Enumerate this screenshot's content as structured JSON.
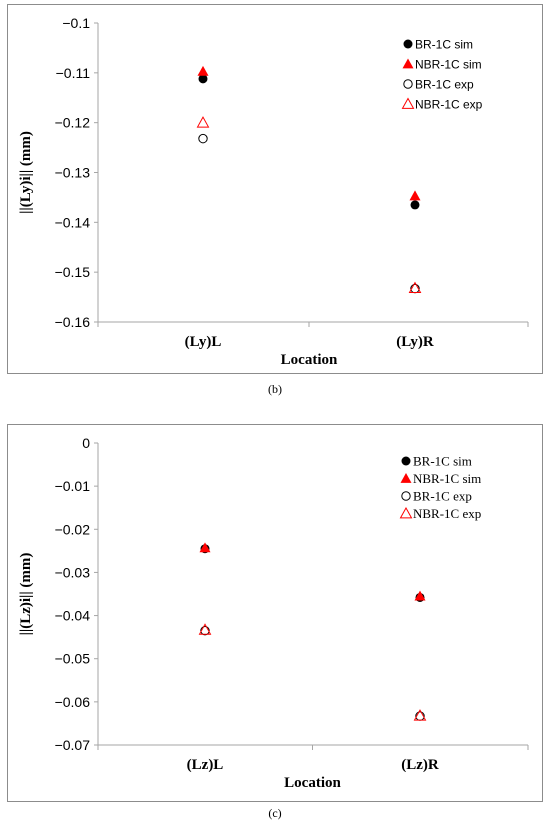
{
  "captions": {
    "b": "(b)",
    "c": "(c)"
  },
  "colors": {
    "black": "#000000",
    "red": "#ff0000",
    "axis": "#a6a6a6"
  },
  "chart_data": [
    {
      "type": "scatter",
      "title": "",
      "xlabel": "Location",
      "ylabel": "||(Ly)i||  (mm)",
      "categories": [
        "(Ly)L",
        "(Ly)R"
      ],
      "ylim": [
        -0.16,
        -0.1
      ],
      "yticks": [
        "-0.1",
        "-0.11",
        "-0.12",
        "-0.13",
        "-0.14",
        "-0.15",
        "-0.16"
      ],
      "yticks_values": [
        -0.1,
        -0.11,
        -0.12,
        -0.13,
        -0.14,
        -0.15,
        -0.16
      ],
      "grid": false,
      "legend_position": "top-right",
      "series": [
        {
          "name": "BR-1C sim",
          "marker": "filled-circle",
          "color": "#000000",
          "values": [
            -0.1112,
            -0.1365
          ]
        },
        {
          "name": "NBR-1C sim",
          "marker": "filled-triangle",
          "color": "#ff0000",
          "values": [
            -0.1097,
            -0.1347
          ]
        },
        {
          "name": "BR-1C exp",
          "marker": "open-circle",
          "color": "#000000",
          "values": [
            -0.1232,
            -0.1533
          ]
        },
        {
          "name": "NBR-1C exp",
          "marker": "open-triangle",
          "color": "#ff0000",
          "values": [
            -0.12,
            -0.1532
          ]
        }
      ]
    },
    {
      "type": "scatter",
      "title": "",
      "xlabel": "Location",
      "ylabel": "||(Lz)i||  (mm)",
      "categories": [
        "(Lz)L",
        "(Lz)R"
      ],
      "ylim": [
        -0.07,
        0
      ],
      "yticks": [
        "0",
        "-0.01",
        "-0.02",
        "-0.03",
        "-0.04",
        "-0.05",
        "-0.06",
        "-0.07"
      ],
      "yticks_values": [
        0,
        -0.01,
        -0.02,
        -0.03,
        -0.04,
        -0.05,
        -0.06,
        -0.07
      ],
      "grid": false,
      "legend_position": "top-right",
      "series": [
        {
          "name": "BR-1C sim",
          "marker": "filled-circle",
          "color": "#000000",
          "values": [
            -0.0245,
            -0.0358
          ]
        },
        {
          "name": "NBR-1C sim",
          "marker": "filled-triangle",
          "color": "#ff0000",
          "values": [
            -0.0243,
            -0.0355
          ]
        },
        {
          "name": "BR-1C exp",
          "marker": "open-circle",
          "color": "#000000",
          "values": [
            -0.0435,
            -0.0633
          ]
        },
        {
          "name": "NBR-1C exp",
          "marker": "open-triangle",
          "color": "#ff0000",
          "values": [
            -0.0433,
            -0.0632
          ]
        }
      ]
    }
  ]
}
